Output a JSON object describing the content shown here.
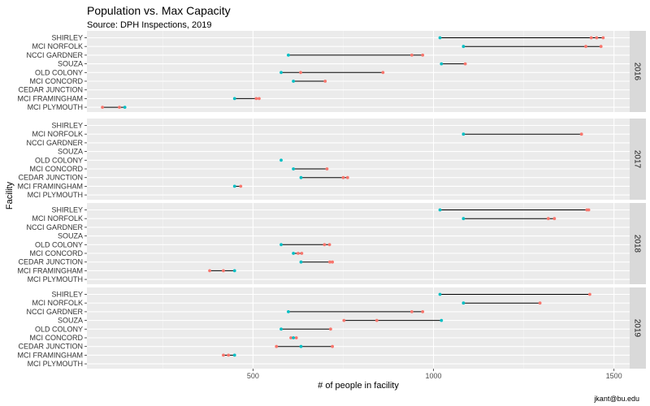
{
  "chart_data": {
    "type": "dumbbell",
    "title": "Population vs. Max Capacity",
    "subtitle": "Source: DPH Inspections, 2019",
    "xlabel": "# of people in facility",
    "ylabel": "Facility",
    "caption": "jkant@bu.edu",
    "xlim": [
      0,
      1580
    ],
    "xticks": [
      500,
      1000,
      1500
    ],
    "grid": true,
    "facilities": [
      "SHIRLEY",
      "MCI NORFOLK",
      "NCCI GARDNER",
      "SOUZA",
      "OLD COLONY",
      "MCI CONCORD",
      "CEDAR JUNCTION",
      "MCI FRAMINGHAM",
      "MCI PLYMOUTH"
    ],
    "colors": {
      "capacity": "#00BFC4",
      "population": "#F8766D",
      "segment": "#000000",
      "panel": "#EBEBEB",
      "strip": "#D9D9D9",
      "grid": "#FFFFFF"
    },
    "panels": [
      {
        "label": "2016",
        "rows": [
          {
            "facility": "SHIRLEY",
            "capacity": 1018,
            "population": [
              1437,
              1452,
              1470
            ]
          },
          {
            "facility": "MCI NORFOLK",
            "capacity": 1083,
            "population": [
              1422,
              1464
            ]
          },
          {
            "facility": "NCCI GARDNER",
            "capacity": 598,
            "population": [
              940,
              970
            ]
          },
          {
            "facility": "SOUZA",
            "capacity": 1022,
            "population": [
              1088
            ]
          },
          {
            "facility": "OLD COLONY",
            "capacity": 578,
            "population": [
              632,
              860
            ]
          },
          {
            "facility": "MCI CONCORD",
            "capacity": 612,
            "population": [
              700
            ]
          },
          {
            "facility": "CEDAR JUNCTION",
            "capacity": null,
            "population": []
          },
          {
            "facility": "MCI FRAMINGHAM",
            "capacity": 449,
            "population": [
              509,
              517
            ]
          },
          {
            "facility": "MCI PLYMOUTH",
            "capacity": 145,
            "population": [
              83,
              130
            ]
          }
        ]
      },
      {
        "label": "2017",
        "rows": [
          {
            "facility": "SHIRLEY",
            "capacity": null,
            "population": []
          },
          {
            "facility": "MCI NORFOLK",
            "capacity": 1083,
            "population": [
              1410
            ]
          },
          {
            "facility": "NCCI GARDNER",
            "capacity": null,
            "population": []
          },
          {
            "facility": "SOUZA",
            "capacity": null,
            "population": []
          },
          {
            "facility": "OLD COLONY",
            "capacity": 578,
            "population": []
          },
          {
            "facility": "MCI CONCORD",
            "capacity": 612,
            "population": [
              705
            ]
          },
          {
            "facility": "CEDAR JUNCTION",
            "capacity": 633,
            "population": [
              750,
              762
            ]
          },
          {
            "facility": "MCI FRAMINGHAM",
            "capacity": 449,
            "population": [
              466
            ]
          },
          {
            "facility": "MCI PLYMOUTH",
            "capacity": null,
            "population": []
          }
        ]
      },
      {
        "label": "2018",
        "rows": [
          {
            "facility": "SHIRLEY",
            "capacity": 1018,
            "population": [
              1425,
              1430
            ]
          },
          {
            "facility": "MCI NORFOLK",
            "capacity": 1083,
            "population": [
              1318,
              1335
            ]
          },
          {
            "facility": "NCCI GARDNER",
            "capacity": null,
            "population": []
          },
          {
            "facility": "SOUZA",
            "capacity": null,
            "population": []
          },
          {
            "facility": "OLD COLONY",
            "capacity": 578,
            "population": [
              698,
              712
            ]
          },
          {
            "facility": "MCI CONCORD",
            "capacity": 612,
            "population": [
              625,
              635
            ]
          },
          {
            "facility": "CEDAR JUNCTION",
            "capacity": 633,
            "population": [
              713,
              720
            ]
          },
          {
            "facility": "MCI FRAMINGHAM",
            "capacity": 449,
            "population": [
              380,
              418
            ]
          },
          {
            "facility": "MCI PLYMOUTH",
            "capacity": null,
            "population": []
          }
        ]
      },
      {
        "label": "2019",
        "rows": [
          {
            "facility": "SHIRLEY",
            "capacity": 1018,
            "population": [
              1433
            ]
          },
          {
            "facility": "MCI NORFOLK",
            "capacity": 1083,
            "population": [
              1295
            ]
          },
          {
            "facility": "NCCI GARDNER",
            "capacity": 598,
            "population": [
              940,
              970
            ]
          },
          {
            "facility": "SOUZA",
            "capacity": 1022,
            "population": [
              752,
              843
            ]
          },
          {
            "facility": "OLD COLONY",
            "capacity": 578,
            "population": [
              715
            ]
          },
          {
            "facility": "MCI CONCORD",
            "capacity": 612,
            "population": [
              605,
              620
            ]
          },
          {
            "facility": "CEDAR JUNCTION",
            "capacity": 633,
            "population": [
              565,
              720
            ]
          },
          {
            "facility": "MCI FRAMINGHAM",
            "capacity": 449,
            "population": [
              418,
              432
            ]
          },
          {
            "facility": "MCI PLYMOUTH",
            "capacity": null,
            "population": []
          }
        ]
      }
    ]
  }
}
